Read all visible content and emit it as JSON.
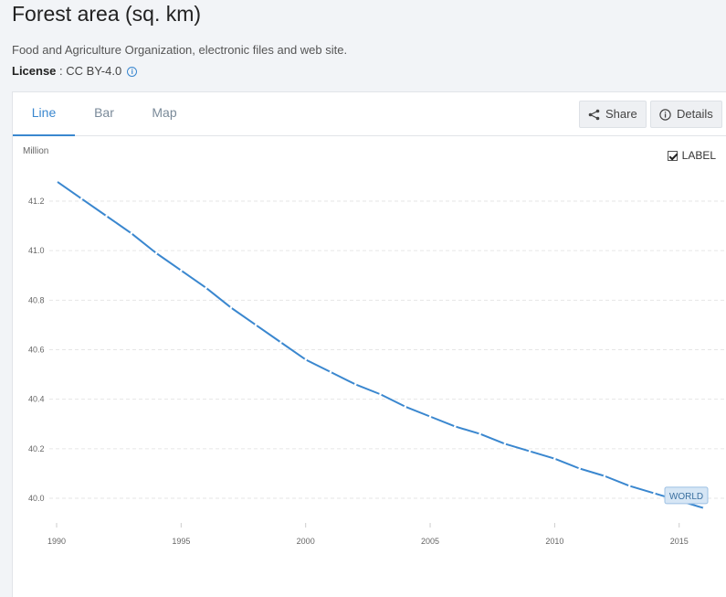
{
  "header": {
    "title": "Forest area (sq. km)",
    "source": "Food and Agriculture Organization, electronic files and web site.",
    "license_label": "License",
    "license_sep": " : ",
    "license_value": "CC BY-4.0",
    "info_icon": "info-circle-icon"
  },
  "tabs": [
    {
      "label": "Line",
      "active": true
    },
    {
      "label": "Bar",
      "active": false
    },
    {
      "label": "Map",
      "active": false
    }
  ],
  "toolbar": {
    "share_label": "Share",
    "share_icon": "share-icon",
    "details_label": "Details",
    "details_icon": "info-icon"
  },
  "label_toggle": {
    "label": "LABEL",
    "checked": true
  },
  "colors": {
    "line": "#3a87cf",
    "accent": "#3a87cf",
    "grid": "#e6e6e6"
  },
  "chart_data": {
    "type": "line",
    "title": "",
    "ylabel": "Million",
    "xlabel": "",
    "xlim": [
      1990,
      2016
    ],
    "ylim": [
      39.95,
      41.4
    ],
    "x_ticks": [
      1990,
      1995,
      2000,
      2005,
      2010,
      2015
    ],
    "y_ticks": [
      "40.0",
      "40.2",
      "40.4",
      "40.6",
      "40.8",
      "41.0",
      "41.2"
    ],
    "grid": true,
    "series": [
      {
        "name": "WORLD",
        "x": [
          1990,
          1991,
          1992,
          1993,
          1994,
          1995,
          1996,
          1997,
          1998,
          1999,
          2000,
          2001,
          2002,
          2003,
          2004,
          2005,
          2006,
          2007,
          2008,
          2009,
          2010,
          2011,
          2012,
          2013,
          2014,
          2015,
          2016
        ],
        "y": [
          41.28,
          41.21,
          41.14,
          41.07,
          40.99,
          40.92,
          40.85,
          40.77,
          40.7,
          40.63,
          40.56,
          40.51,
          40.46,
          40.42,
          40.37,
          40.33,
          40.29,
          40.26,
          40.22,
          40.19,
          40.16,
          40.12,
          40.09,
          40.05,
          40.02,
          39.99,
          39.96
        ]
      }
    ],
    "end_label": "WORLD"
  }
}
